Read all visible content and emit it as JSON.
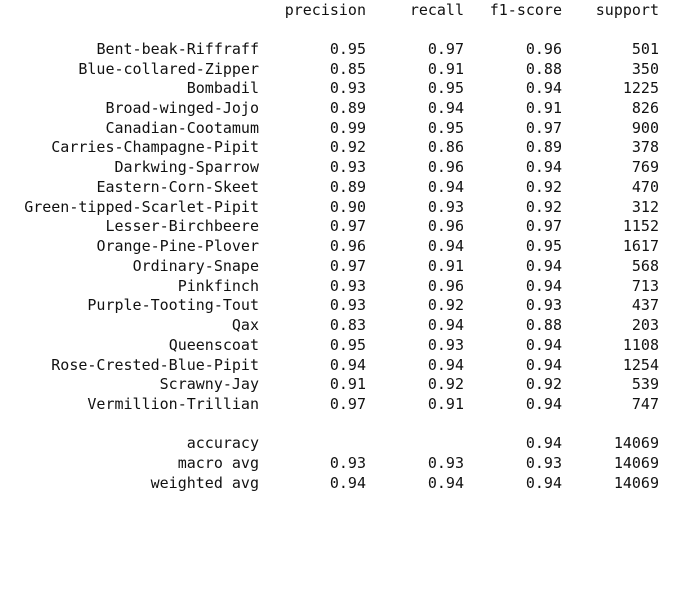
{
  "header": {
    "precision": "precision",
    "recall": "recall",
    "f1": "f1-score",
    "support": "support"
  },
  "rows": [
    {
      "label": "Bent-beak-Riffraff",
      "precision": "0.95",
      "recall": "0.97",
      "f1": "0.96",
      "support": "501"
    },
    {
      "label": "Blue-collared-Zipper",
      "precision": "0.85",
      "recall": "0.91",
      "f1": "0.88",
      "support": "350"
    },
    {
      "label": "Bombadil",
      "precision": "0.93",
      "recall": "0.95",
      "f1": "0.94",
      "support": "1225"
    },
    {
      "label": "Broad-winged-Jojo",
      "precision": "0.89",
      "recall": "0.94",
      "f1": "0.91",
      "support": "826"
    },
    {
      "label": "Canadian-Cootamum",
      "precision": "0.99",
      "recall": "0.95",
      "f1": "0.97",
      "support": "900"
    },
    {
      "label": "Carries-Champagne-Pipit",
      "precision": "0.92",
      "recall": "0.86",
      "f1": "0.89",
      "support": "378"
    },
    {
      "label": "Darkwing-Sparrow",
      "precision": "0.93",
      "recall": "0.96",
      "f1": "0.94",
      "support": "769"
    },
    {
      "label": "Eastern-Corn-Skeet",
      "precision": "0.89",
      "recall": "0.94",
      "f1": "0.92",
      "support": "470"
    },
    {
      "label": "Green-tipped-Scarlet-Pipit",
      "precision": "0.90",
      "recall": "0.93",
      "f1": "0.92",
      "support": "312"
    },
    {
      "label": "Lesser-Birchbeere",
      "precision": "0.97",
      "recall": "0.96",
      "f1": "0.97",
      "support": "1152"
    },
    {
      "label": "Orange-Pine-Plover",
      "precision": "0.96",
      "recall": "0.94",
      "f1": "0.95",
      "support": "1617"
    },
    {
      "label": "Ordinary-Snape",
      "precision": "0.97",
      "recall": "0.91",
      "f1": "0.94",
      "support": "568"
    },
    {
      "label": "Pinkfinch",
      "precision": "0.93",
      "recall": "0.96",
      "f1": "0.94",
      "support": "713"
    },
    {
      "label": "Purple-Tooting-Tout",
      "precision": "0.93",
      "recall": "0.92",
      "f1": "0.93",
      "support": "437"
    },
    {
      "label": "Qax",
      "precision": "0.83",
      "recall": "0.94",
      "f1": "0.88",
      "support": "203"
    },
    {
      "label": "Queenscoat",
      "precision": "0.95",
      "recall": "0.93",
      "f1": "0.94",
      "support": "1108"
    },
    {
      "label": "Rose-Crested-Blue-Pipit",
      "precision": "0.94",
      "recall": "0.94",
      "f1": "0.94",
      "support": "1254"
    },
    {
      "label": "Scrawny-Jay",
      "precision": "0.91",
      "recall": "0.92",
      "f1": "0.92",
      "support": "539"
    },
    {
      "label": "Vermillion-Trillian",
      "precision": "0.97",
      "recall": "0.91",
      "f1": "0.94",
      "support": "747"
    }
  ],
  "summary": {
    "accuracy": {
      "label": "accuracy",
      "precision": "",
      "recall": "",
      "f1": "0.94",
      "support": "14069"
    },
    "macro_avg": {
      "label": "macro avg",
      "precision": "0.93",
      "recall": "0.93",
      "f1": "0.93",
      "support": "14069"
    },
    "weighted_avg": {
      "label": "weighted avg",
      "precision": "0.94",
      "recall": "0.94",
      "f1": "0.94",
      "support": "14069"
    }
  }
}
